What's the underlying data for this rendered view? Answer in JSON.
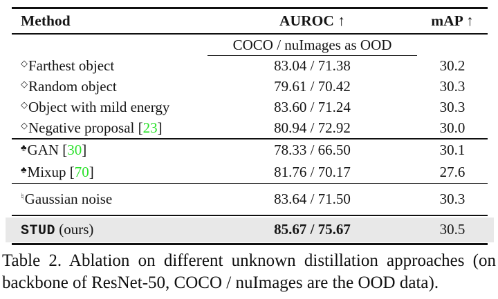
{
  "colors": {
    "citation_green": "#2be12b",
    "highlight_bg": "#e8e8e8",
    "rule": "#101010",
    "background": "#ffffff"
  },
  "table": {
    "columns": {
      "method": "Method",
      "auroc": "AUROC ↑",
      "map": "mAP ↑"
    },
    "ood_subheader": "COCO / nuImages as OOD",
    "groups": [
      {
        "rows": [
          {
            "symbol": "◇",
            "method": "Farthest object",
            "cite": null,
            "auroc": "83.04 / 71.38",
            "map": "30.2"
          },
          {
            "symbol": "◇",
            "method": "Random object",
            "cite": null,
            "auroc": "79.61 / 70.42",
            "map": "30.3"
          },
          {
            "symbol": "◇",
            "method": "Object with mild energy",
            "cite": null,
            "auroc": "83.60 / 71.24",
            "map": "30.3"
          },
          {
            "symbol": "◇",
            "method": "Negative proposal",
            "cite": "23",
            "auroc": "80.94 / 72.92",
            "map": "30.0"
          }
        ]
      },
      {
        "rows": [
          {
            "symbol": "♣",
            "method": "GAN",
            "cite": "30",
            "auroc": "78.33 / 66.50",
            "map": "30.1"
          },
          {
            "symbol": "♣",
            "method": "Mixup",
            "cite": "70",
            "auroc": "81.76 / 70.17",
            "map": "27.6"
          }
        ]
      },
      {
        "rows": [
          {
            "symbol": "♮",
            "method": "Gaussian noise",
            "cite": null,
            "auroc": "83.64 / 71.50",
            "map": "30.3"
          }
        ]
      }
    ],
    "highlight_row": {
      "method_code": "STUD",
      "method_suffix": " (ours)",
      "auroc": "85.67 / 75.67",
      "map": "30.5"
    }
  },
  "caption": {
    "line1": "Table 2.  Ablation on different unknown distillation approaches (on",
    "line2": "backbone of ResNet-50, COCO / nuImages are the OOD data)."
  }
}
